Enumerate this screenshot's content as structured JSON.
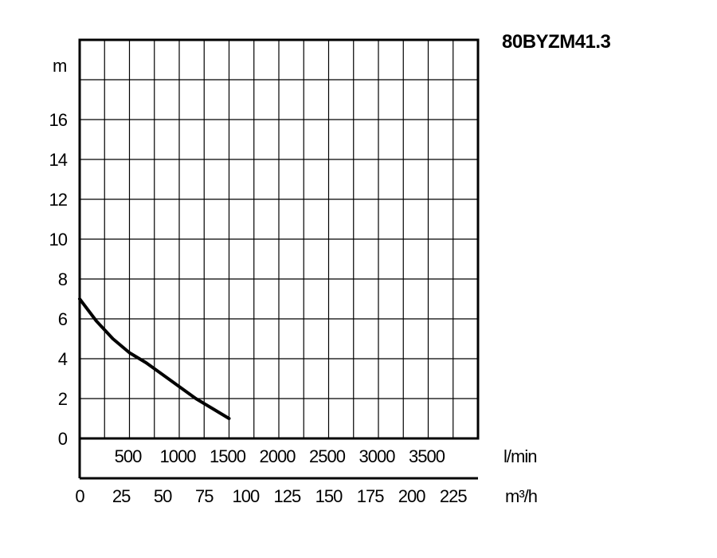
{
  "chart_data": {
    "type": "line",
    "title": "80BYZM41.3",
    "ylabel": "m",
    "ylim": [
      0,
      20
    ],
    "yticks": [
      0,
      2,
      4,
      6,
      8,
      10,
      12,
      14,
      16
    ],
    "xlim_m3h": [
      0,
      240
    ],
    "x_ticks_m3h": [
      "0",
      "25",
      "50",
      "75",
      "100",
      "125",
      "150",
      "175",
      "200",
      "225"
    ],
    "x_unit_m3h": "m³/h",
    "x_ticks_lmin": [
      "500",
      "1000",
      "1500",
      "2000",
      "2500",
      "3000",
      "3500"
    ],
    "x_unit_lmin": "l/min",
    "grid": true,
    "series": [
      {
        "x": [
          0,
          10,
          20,
          30,
          40,
          50,
          60,
          70,
          80,
          90
        ],
        "y": [
          7.0,
          5.9,
          5.0,
          4.3,
          3.8,
          3.2,
          2.6,
          2.0,
          1.5,
          1.0
        ],
        "color": "#000000"
      }
    ]
  }
}
